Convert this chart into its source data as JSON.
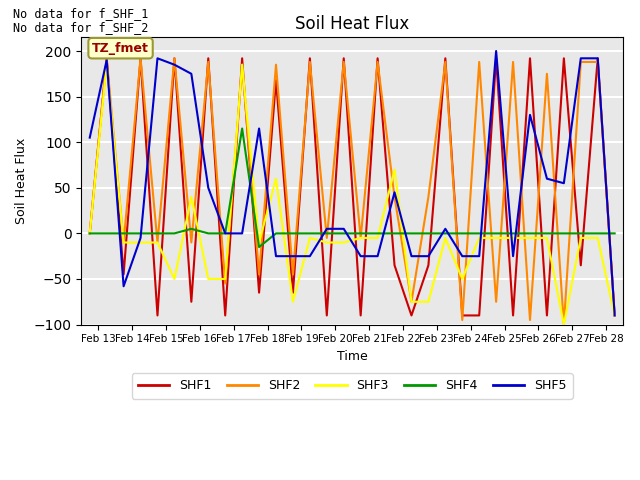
{
  "title": "Soil Heat Flux",
  "ylabel": "Soil Heat Flux",
  "xlabel": "Time",
  "annotations": [
    "No data for f_SHF_1",
    "No data for f_SHF_2"
  ],
  "box_label": "TZ_fmet",
  "ylim": [
    -100,
    215
  ],
  "yticks": [
    -100,
    -50,
    0,
    50,
    100,
    150,
    200
  ],
  "plot_bg": "#e8e8e8",
  "grid_color": "white",
  "colors": {
    "SHF1": "#cc0000",
    "SHF2": "#ff8800",
    "SHF3": "#ffff00",
    "SHF4": "#009900",
    "SHF5": "#0000cc"
  },
  "xtick_labels": [
    "Feb 13",
    "Feb 14",
    "Feb 15",
    "Feb 16",
    "Feb 17",
    "Feb 18",
    "Feb 19",
    "Feb 20",
    "Feb 21",
    "Feb 22",
    "Feb 23",
    "Feb 24",
    "Feb 25",
    "Feb 26",
    "Feb 27",
    "Feb 28"
  ],
  "SHF1": [
    0,
    192,
    -45,
    192,
    -90,
    192,
    -75,
    192,
    -90,
    192,
    -65,
    168,
    -65,
    192,
    -90,
    192,
    -90,
    192,
    -35,
    -90,
    -35,
    192,
    -90,
    -90,
    192,
    -90,
    192,
    -90,
    192,
    -35,
    192,
    -90
  ],
  "SHF2": [
    0,
    192,
    -10,
    192,
    -10,
    192,
    -10,
    188,
    -55,
    185,
    -45,
    185,
    -45,
    188,
    -5,
    188,
    -5,
    188,
    40,
    -75,
    40,
    188,
    -95,
    188,
    -75,
    188,
    -95,
    175,
    -100,
    188,
    188,
    -90
  ],
  "SHF3": [
    0,
    185,
    -10,
    -10,
    -10,
    -50,
    40,
    -50,
    -50,
    185,
    -10,
    60,
    -75,
    -5,
    -10,
    -10,
    -5,
    -5,
    70,
    -75,
    -75,
    -5,
    -50,
    -5,
    -5,
    -5,
    -5,
    -5,
    -100,
    -5,
    -5,
    -90
  ],
  "SHF4": [
    0,
    0,
    0,
    0,
    0,
    0,
    5,
    0,
    0,
    115,
    -15,
    0,
    0,
    0,
    0,
    0,
    0,
    0,
    0,
    0,
    0,
    0,
    0,
    0,
    0,
    0,
    0,
    0,
    0,
    0,
    0,
    0
  ],
  "SHF5": [
    105,
    190,
    -58,
    -5,
    192,
    185,
    175,
    50,
    0,
    0,
    115,
    -25,
    -25,
    -25,
    5,
    5,
    -25,
    -25,
    45,
    -25,
    -25,
    5,
    -25,
    -25,
    200,
    -25,
    130,
    60,
    55,
    192,
    192,
    -90
  ],
  "n_points": 32
}
